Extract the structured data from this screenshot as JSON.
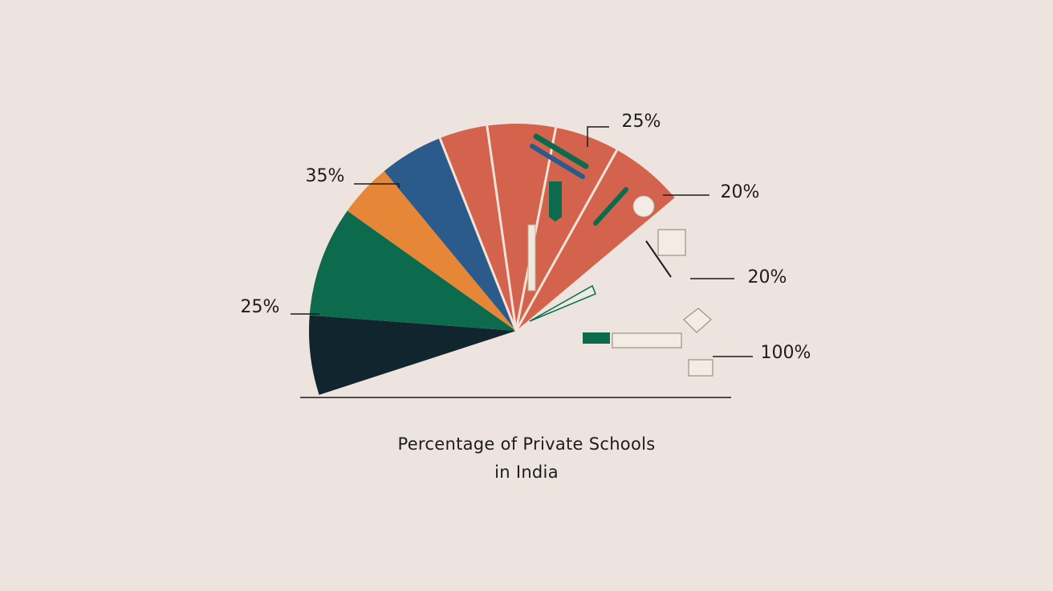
{
  "chart_data": {
    "type": "pie",
    "title_lines": [
      "Percentage of Private Schools",
      "in India"
    ],
    "layout": "half-pie",
    "slices": [
      {
        "label": "",
        "value": 22.6,
        "color": "#11252f"
      },
      {
        "label": "25%",
        "value": 31.5,
        "color": "#0b6b4c"
      },
      {
        "label": "35%",
        "value": 15.2,
        "color": "#e68637"
      },
      {
        "label": "",
        "value": 18.2,
        "color": "#2b5b8a"
      },
      {
        "label": "25%",
        "value": 13.7,
        "color": "#d4634d"
      },
      {
        "label": "20%",
        "value": 19.4,
        "color": "#d4634d"
      },
      {
        "label": "20%",
        "value": 18.3,
        "color": "#d4634d"
      },
      {
        "label": "100%",
        "value": 21.1,
        "color": "#d4634d"
      }
    ],
    "slice_icons": [
      "",
      "",
      "",
      "",
      "pencils-icon",
      "books-icon",
      "pencil-icon",
      "ruler-icon"
    ],
    "separator_color": "#f5e3d8"
  }
}
